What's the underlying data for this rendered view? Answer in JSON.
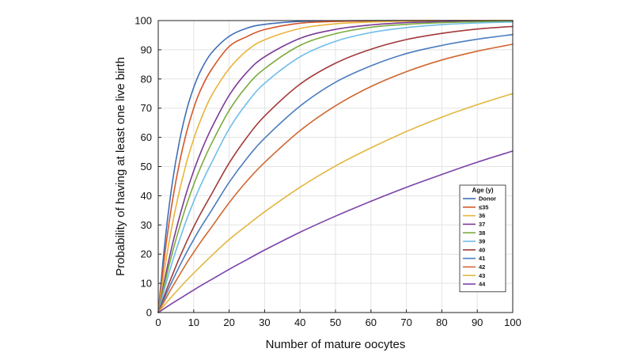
{
  "chart_data": {
    "type": "line",
    "xlabel": "Number of mature oocytes",
    "ylabel": "Probability of having at least one live birth",
    "xlim": [
      0,
      100
    ],
    "ylim": [
      0,
      100
    ],
    "xticks": [
      0,
      10,
      20,
      30,
      40,
      50,
      60,
      70,
      80,
      90,
      100
    ],
    "yticks": [
      0,
      10,
      20,
      30,
      40,
      50,
      60,
      70,
      80,
      90,
      100
    ],
    "grid": true,
    "legend": {
      "title": "Age (y)",
      "position": "bottom-right"
    },
    "x": [
      0,
      2,
      4,
      6,
      8,
      10,
      12,
      15,
      20,
      25,
      30,
      40,
      50,
      60,
      70,
      80,
      90,
      100
    ],
    "series": [
      {
        "name": "Donor",
        "color": "#3f6fb6",
        "values": [
          0,
          25.5,
          44.6,
          58.8,
          69.3,
          77.1,
          82.9,
          88.9,
          94.6,
          97.4,
          98.7,
          99.7,
          99.9,
          100,
          100,
          100,
          100,
          100
        ]
      },
      {
        "name": "≤35",
        "color": "#d4572a",
        "values": [
          0,
          21.4,
          38.2,
          51.4,
          61.8,
          70.0,
          76.4,
          83.2,
          91.1,
          94.5,
          96.9,
          99.1,
          99.7,
          99.9,
          100,
          100,
          100,
          100
        ]
      },
      {
        "name": "36",
        "color": "#e9b43a",
        "values": [
          0,
          16.5,
          30.3,
          41.8,
          51.4,
          59.4,
          66.1,
          74.2,
          83.5,
          89.7,
          93.4,
          97.3,
          98.9,
          99.5,
          99.8,
          99.9,
          100,
          100
        ]
      },
      {
        "name": "37",
        "color": "#7b3a96",
        "values": [
          0,
          12.4,
          23.3,
          32.8,
          41.2,
          48.5,
          54.9,
          63.1,
          74.4,
          82.3,
          87.6,
          93.9,
          97.0,
          98.5,
          99.3,
          99.6,
          99.8,
          99.9
        ]
      },
      {
        "name": "38",
        "color": "#7aab3c",
        "values": [
          0,
          10.9,
          20.6,
          29.2,
          36.9,
          43.8,
          49.9,
          57.8,
          69.2,
          77.6,
          83.5,
          91.5,
          95.5,
          97.7,
          98.7,
          99.3,
          99.6,
          99.8
        ]
      },
      {
        "name": "39",
        "color": "#6fbce8",
        "values": [
          0,
          9.1,
          17.4,
          24.9,
          31.8,
          38.0,
          43.7,
          51.2,
          62.9,
          71.7,
          78.5,
          87.6,
          92.9,
          95.9,
          97.6,
          98.6,
          99.2,
          99.5
        ]
      },
      {
        "name": "40",
        "color": "#a23a3a",
        "values": [
          0,
          6.7,
          12.9,
          18.8,
          24.2,
          29.3,
          34.0,
          40.5,
          51.2,
          60.0,
          67.3,
          78.2,
          85.4,
          90.2,
          93.5,
          95.6,
          97.1,
          98.0
        ]
      },
      {
        "name": "41",
        "color": "#4a7cc0",
        "values": [
          0,
          5.6,
          10.9,
          15.9,
          20.6,
          25.0,
          29.2,
          34.9,
          44.6,
          52.8,
          59.7,
          70.7,
          78.9,
          84.5,
          88.7,
          91.5,
          93.6,
          95.2
        ]
      },
      {
        "name": "42",
        "color": "#d06830",
        "values": [
          0,
          4.5,
          8.8,
          12.9,
          16.9,
          20.6,
          24.2,
          29.2,
          37.6,
          45.0,
          51.4,
          62.3,
          70.8,
          77.4,
          82.5,
          86.5,
          89.5,
          91.9
        ]
      },
      {
        "name": "43",
        "color": "#e3b640",
        "values": [
          0,
          2.9,
          5.7,
          8.4,
          11.0,
          13.5,
          15.9,
          19.4,
          25.0,
          29.8,
          34.5,
          42.9,
          50.2,
          56.4,
          62.0,
          66.9,
          71.2,
          75.0
        ]
      },
      {
        "name": "44",
        "color": "#7b42a8",
        "values": [
          0,
          1.6,
          3.2,
          4.7,
          6.2,
          7.7,
          9.2,
          11.3,
          14.8,
          18.1,
          21.4,
          27.5,
          33.0,
          38.1,
          42.9,
          47.3,
          51.5,
          55.3
        ]
      }
    ]
  }
}
